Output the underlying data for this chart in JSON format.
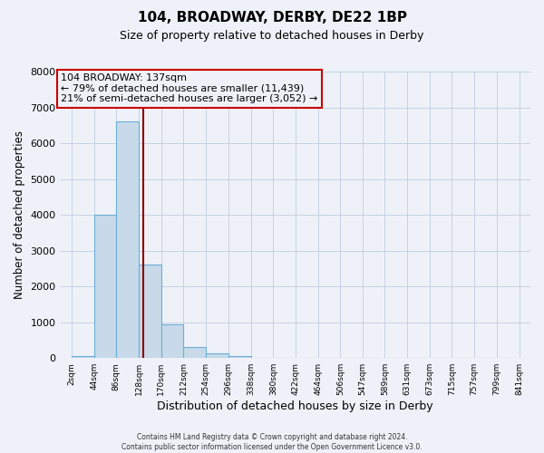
{
  "title": "104, BROADWAY, DERBY, DE22 1BP",
  "subtitle": "Size of property relative to detached houses in Derby",
  "xlabel": "Distribution of detached houses by size in Derby",
  "ylabel": "Number of detached properties",
  "bar_left_edges": [
    2,
    44,
    86,
    128,
    170,
    212,
    254,
    296,
    338,
    380,
    422,
    464,
    506,
    547,
    589,
    631,
    673,
    715,
    757,
    799
  ],
  "bar_heights": [
    50,
    4000,
    6600,
    2600,
    950,
    310,
    120,
    50,
    0,
    0,
    0,
    0,
    0,
    0,
    0,
    0,
    0,
    0,
    0,
    0
  ],
  "bin_width": 42,
  "property_size": 137,
  "property_label": "104 BROADWAY: 137sqm",
  "annotation_line1": "← 79% of detached houses are smaller (11,439)",
  "annotation_line2": "21% of semi-detached houses are larger (3,052) →",
  "tick_labels": [
    "2sqm",
    "44sqm",
    "86sqm",
    "128sqm",
    "170sqm",
    "212sqm",
    "254sqm",
    "296sqm",
    "338sqm",
    "380sqm",
    "422sqm",
    "464sqm",
    "506sqm",
    "547sqm",
    "589sqm",
    "631sqm",
    "673sqm",
    "715sqm",
    "757sqm",
    "799sqm",
    "841sqm"
  ],
  "bar_color": "#c8daea",
  "bar_edge_color": "#6aaed6",
  "ref_line_color": "#8b0000",
  "box_edge_color": "#cc0000",
  "ylim": [
    0,
    8000
  ],
  "footer_line1": "Contains HM Land Registry data © Crown copyright and database right 2024.",
  "footer_line2": "Contains public sector information licensed under the Open Government Licence v3.0.",
  "bg_color": "#eef2f8"
}
